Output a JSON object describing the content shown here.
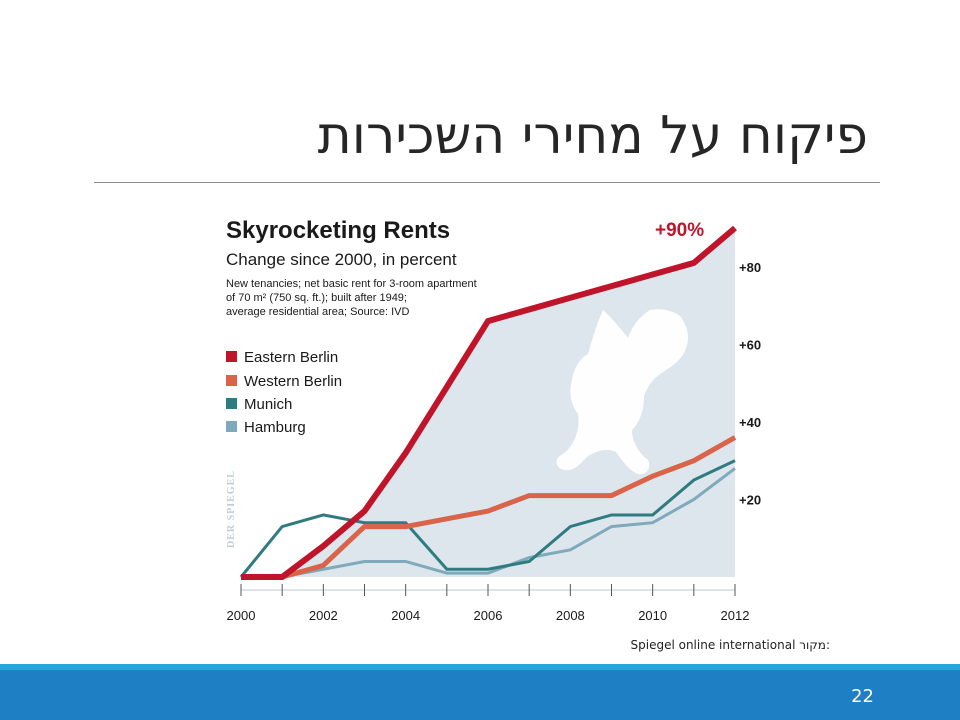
{
  "slide": {
    "title": "פיקוח על מחירי השכירות",
    "source_label": "מקור:",
    "source_text": "Spiegel online international",
    "page_number": "22"
  },
  "chart_data": {
    "type": "line",
    "title": "Skyrocketing Rents",
    "subtitle": "Change since 2000, in percent",
    "note_lines": [
      "New tenancies; net basic rent for 3-room apartment",
      "of 70 m² (750 sq. ft.); built after 1949;",
      "average residential area; Source: IVD"
    ],
    "watermark": "DER SPIEGEL",
    "callout": "+90%",
    "x": [
      2000,
      2001,
      2002,
      2003,
      2004,
      2005,
      2006,
      2007,
      2008,
      2009,
      2010,
      2011,
      2012
    ],
    "x_tick_labels": [
      "2000",
      "2002",
      "2004",
      "2006",
      "2008",
      "2010",
      "2012"
    ],
    "y_tick_labels": [
      "+20",
      "+40",
      "+60",
      "+80"
    ],
    "y_ticks": [
      20,
      40,
      60,
      80
    ],
    "xlim": [
      2000,
      2012
    ],
    "ylim": [
      0,
      90
    ],
    "legend_position": "left",
    "grid": false,
    "series": [
      {
        "name": "Eastern Berlin",
        "color": "#c0142a",
        "values": [
          0,
          0,
          8,
          17,
          32,
          49,
          66,
          69,
          72,
          75,
          78,
          81,
          90
        ]
      },
      {
        "name": "Western Berlin",
        "color": "#d9644a",
        "values": [
          0,
          0,
          3,
          13,
          13,
          15,
          17,
          21,
          21,
          21,
          26,
          30,
          36
        ]
      },
      {
        "name": "Munich",
        "color": "#2e7b80",
        "values": [
          0,
          13,
          16,
          14,
          14,
          2,
          2,
          4,
          13,
          16,
          16,
          25,
          30
        ]
      },
      {
        "name": "Hamburg",
        "color": "#7eaabb",
        "values": [
          0,
          0,
          2,
          4,
          4,
          1,
          1,
          5,
          7,
          13,
          14,
          20,
          28
        ]
      }
    ],
    "area_color": "#dde6ec"
  }
}
